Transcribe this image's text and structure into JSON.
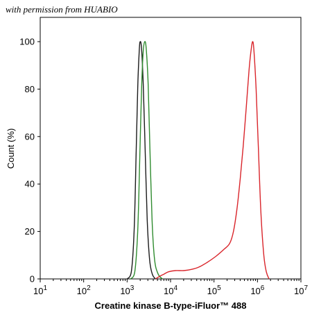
{
  "watermark": "with permission from HUABIO",
  "chart_data": {
    "type": "line",
    "title": "",
    "xlabel": "Creatine kinase B-type-iFluor™ 488",
    "ylabel": "Count  (%)",
    "x_scale": "log",
    "xlim": [
      10,
      10000000
    ],
    "ylim": [
      0,
      100
    ],
    "x_ticks": [
      {
        "value": 10,
        "base": "10",
        "exp": "1"
      },
      {
        "value": 100,
        "base": "10",
        "exp": "2"
      },
      {
        "value": 1000,
        "base": "10",
        "exp": "3"
      },
      {
        "value": 10000,
        "base": "10",
        "exp": "4"
      },
      {
        "value": 100000,
        "base": "10",
        "exp": "5"
      },
      {
        "value": 1000000,
        "base": "10",
        "exp": "6"
      },
      {
        "value": 10000000,
        "base": "10",
        "exp": "7"
      }
    ],
    "y_ticks": [
      0,
      20,
      40,
      60,
      80,
      100
    ],
    "grid": false,
    "legend": "none",
    "series": [
      {
        "color": "#1a1a1a",
        "points": [
          [
            1000,
            0
          ],
          [
            1250,
            3
          ],
          [
            1450,
            20
          ],
          [
            1600,
            50
          ],
          [
            1750,
            80
          ],
          [
            1900,
            96
          ],
          [
            2000,
            100
          ],
          [
            2150,
            97
          ],
          [
            2350,
            82
          ],
          [
            2600,
            55
          ],
          [
            2900,
            25
          ],
          [
            3300,
            8
          ],
          [
            3800,
            2
          ],
          [
            4500,
            0
          ]
        ]
      },
      {
        "color": "#2e8b2e",
        "points": [
          [
            1200,
            0
          ],
          [
            1500,
            3
          ],
          [
            1750,
            20
          ],
          [
            1950,
            50
          ],
          [
            2150,
            80
          ],
          [
            2350,
            96
          ],
          [
            2550,
            100
          ],
          [
            2750,
            97
          ],
          [
            3050,
            82
          ],
          [
            3350,
            55
          ],
          [
            3750,
            25
          ],
          [
            4300,
            8
          ],
          [
            5200,
            2
          ],
          [
            6500,
            0
          ]
        ]
      },
      {
        "color": "#d9242a",
        "points": [
          [
            4500,
            0
          ],
          [
            5500,
            1
          ],
          [
            7000,
            2
          ],
          [
            9000,
            3
          ],
          [
            13000,
            3.5
          ],
          [
            20000,
            3.5
          ],
          [
            30000,
            4
          ],
          [
            45000,
            5
          ],
          [
            70000,
            7
          ],
          [
            110000,
            9.5
          ],
          [
            170000,
            12.5
          ],
          [
            230000,
            15
          ],
          [
            280000,
            20
          ],
          [
            340000,
            30
          ],
          [
            400000,
            42
          ],
          [
            470000,
            56
          ],
          [
            550000,
            72
          ],
          [
            640000,
            88
          ],
          [
            720000,
            97
          ],
          [
            780000,
            100
          ],
          [
            830000,
            96
          ],
          [
            930000,
            80
          ],
          [
            1050000,
            55
          ],
          [
            1200000,
            28
          ],
          [
            1400000,
            10
          ],
          [
            1600000,
            3
          ],
          [
            1850000,
            0
          ]
        ]
      }
    ]
  }
}
